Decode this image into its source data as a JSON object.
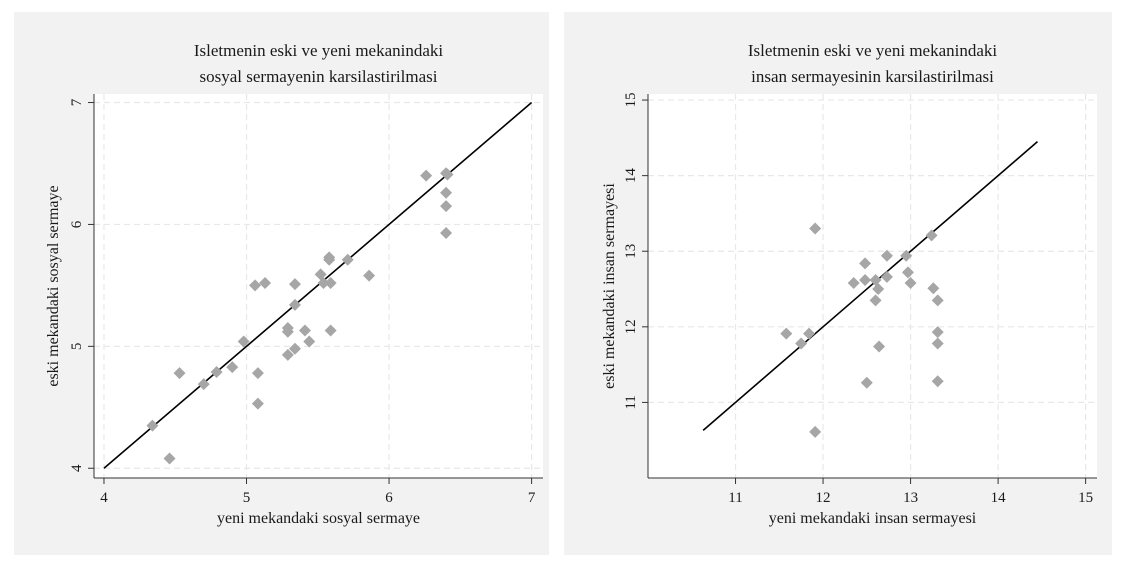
{
  "colors": {
    "page_background": "#ffffff",
    "panel_background": "#f2f2f2",
    "plot_background": "#ffffff",
    "marker": "#a6a6a6",
    "line": "#000000",
    "grid": "#e8e8e8"
  },
  "chart_data": [
    {
      "type": "scatter",
      "title_lines": [
        "Isletmenin eski ve yeni mekanindaki",
        "sosyal sermayenin karsilastirilmasi"
      ],
      "xlabel": "yeni mekandaki sosyal sermaye",
      "ylabel": "eski mekandaki sosyal sermaye",
      "xlim": [
        3.93,
        7.08
      ],
      "ylim": [
        3.92,
        7.07
      ],
      "xticks": [
        4,
        5,
        6,
        7
      ],
      "yticks": [
        4,
        5,
        6,
        7
      ],
      "grid": true,
      "marker": "diamond",
      "reference_line": {
        "x": [
          4,
          7
        ],
        "y": [
          4,
          7
        ]
      },
      "points": [
        {
          "x": 4.34,
          "y": 4.35
        },
        {
          "x": 4.46,
          "y": 4.08
        },
        {
          "x": 4.53,
          "y": 4.78
        },
        {
          "x": 4.7,
          "y": 4.69
        },
        {
          "x": 4.79,
          "y": 4.79
        },
        {
          "x": 4.9,
          "y": 4.83
        },
        {
          "x": 4.98,
          "y": 5.04
        },
        {
          "x": 5.06,
          "y": 5.5
        },
        {
          "x": 5.08,
          "y": 4.78
        },
        {
          "x": 5.08,
          "y": 4.53
        },
        {
          "x": 5.13,
          "y": 5.52
        },
        {
          "x": 5.29,
          "y": 5.15
        },
        {
          "x": 5.29,
          "y": 5.12
        },
        {
          "x": 5.29,
          "y": 4.93
        },
        {
          "x": 5.34,
          "y": 5.51
        },
        {
          "x": 5.34,
          "y": 5.34
        },
        {
          "x": 5.34,
          "y": 4.98
        },
        {
          "x": 5.41,
          "y": 5.13
        },
        {
          "x": 5.44,
          "y": 5.04
        },
        {
          "x": 5.52,
          "y": 5.59
        },
        {
          "x": 5.54,
          "y": 5.52
        },
        {
          "x": 5.58,
          "y": 5.73
        },
        {
          "x": 5.58,
          "y": 5.71
        },
        {
          "x": 5.59,
          "y": 5.52
        },
        {
          "x": 5.59,
          "y": 5.13
        },
        {
          "x": 5.71,
          "y": 5.71
        },
        {
          "x": 5.86,
          "y": 5.58
        },
        {
          "x": 6.26,
          "y": 6.4
        },
        {
          "x": 6.4,
          "y": 6.42
        },
        {
          "x": 6.41,
          "y": 6.41
        },
        {
          "x": 6.4,
          "y": 6.26
        },
        {
          "x": 6.4,
          "y": 6.15
        },
        {
          "x": 6.4,
          "y": 5.93
        }
      ]
    },
    {
      "type": "scatter",
      "title_lines": [
        "Isletmenin eski ve yeni mekanindaki",
        "insan sermayesinin karsilastirilmasi"
      ],
      "xlabel": "yeni mekandaki insan sermayesi",
      "ylabel": "eski mekandaki insan sermayesi",
      "xlim": [
        10,
        15.13
      ],
      "ylim": [
        10,
        15.08
      ],
      "xticks": [
        11,
        12,
        13,
        14,
        15
      ],
      "yticks": [
        11,
        12,
        13,
        14,
        15
      ],
      "grid": true,
      "marker": "diamond",
      "reference_line": {
        "x": [
          10.63,
          14.45
        ],
        "y": [
          10.63,
          14.45
        ]
      },
      "points": [
        {
          "x": 11.58,
          "y": 11.91
        },
        {
          "x": 11.75,
          "y": 11.78
        },
        {
          "x": 11.84,
          "y": 11.91
        },
        {
          "x": 11.91,
          "y": 13.3
        },
        {
          "x": 11.91,
          "y": 10.61
        },
        {
          "x": 12.35,
          "y": 12.58
        },
        {
          "x": 12.48,
          "y": 12.84
        },
        {
          "x": 12.48,
          "y": 12.62
        },
        {
          "x": 12.5,
          "y": 11.26
        },
        {
          "x": 12.6,
          "y": 12.62
        },
        {
          "x": 12.6,
          "y": 12.35
        },
        {
          "x": 12.63,
          "y": 12.5
        },
        {
          "x": 12.64,
          "y": 11.74
        },
        {
          "x": 12.73,
          "y": 12.94
        },
        {
          "x": 12.73,
          "y": 12.66
        },
        {
          "x": 12.95,
          "y": 12.94
        },
        {
          "x": 12.97,
          "y": 12.72
        },
        {
          "x": 13.0,
          "y": 12.58
        },
        {
          "x": 13.24,
          "y": 13.21
        },
        {
          "x": 13.26,
          "y": 12.51
        },
        {
          "x": 13.31,
          "y": 12.35
        },
        {
          "x": 13.31,
          "y": 11.93
        },
        {
          "x": 13.31,
          "y": 11.78
        },
        {
          "x": 13.31,
          "y": 11.28
        }
      ]
    }
  ]
}
